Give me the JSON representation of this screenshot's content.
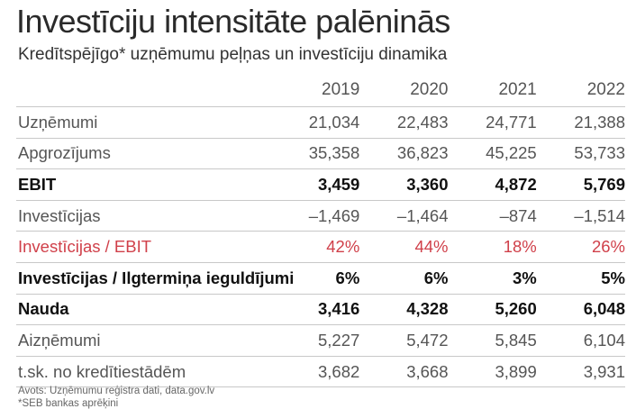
{
  "title": "Investīciju intensitāte palēninās",
  "subtitle": "Kredītspējīgo* uzņēmumu peļņas un investīciju dinamika",
  "colors": {
    "accent": "#d0404a",
    "text": "#1a1a1a",
    "muted": "#555555",
    "rule": "#c8c8c8"
  },
  "chart_data": {
    "type": "table",
    "columns": [
      "2019",
      "2020",
      "2021",
      "2022"
    ],
    "rows": [
      {
        "label": "Uzņēmumi",
        "values": [
          "21,034",
          "22,483",
          "24,771",
          "21,388"
        ],
        "style": "light"
      },
      {
        "label": "Apgrozījums",
        "values": [
          "35,358",
          "36,823",
          "45,225",
          "53,733"
        ],
        "style": "light"
      },
      {
        "label": "EBIT",
        "values": [
          "3,459",
          "3,360",
          "4,872",
          "5,769"
        ],
        "style": "bold"
      },
      {
        "label": "Investīcijas",
        "values": [
          "–1,469",
          "–1,464",
          "–874",
          "–1,514"
        ],
        "style": "light"
      },
      {
        "label": "Investīcijas / EBIT",
        "values": [
          "42%",
          "44%",
          "18%",
          "26%"
        ],
        "style": "accent"
      },
      {
        "label": "Investīcijas / Ilgtermiņa ieguldījumi",
        "values": [
          "6%",
          "6%",
          "3%",
          "5%"
        ],
        "style": "bold"
      },
      {
        "label": "Nauda",
        "values": [
          "3,416",
          "4,328",
          "5,260",
          "6,048"
        ],
        "style": "bold"
      },
      {
        "label": "Aizņēmumi",
        "values": [
          "5,227",
          "5,472",
          "5,845",
          "6,104"
        ],
        "style": "light"
      },
      {
        "label": "t.sk. no kredītiestādēm",
        "values": [
          "3,682",
          "3,668",
          "3,899",
          "3,931"
        ],
        "style": "light"
      }
    ]
  },
  "footer": {
    "source": "Avots: Uzņēmumu reģistra dati, data.gov.lv",
    "note": "*SEB bankas aprēķini"
  }
}
